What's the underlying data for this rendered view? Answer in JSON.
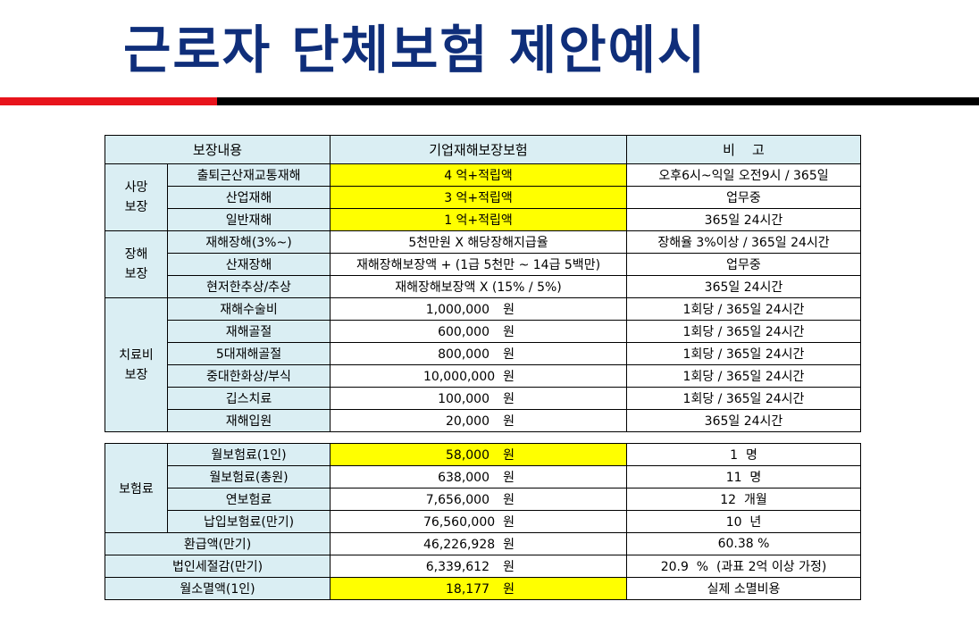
{
  "title": "근로자 단체보험 제안예시",
  "colors": {
    "title": "#0f2e7a",
    "bar_red": "#e8141c",
    "bar_black": "#000000",
    "header_bg": "#daeef3",
    "highlight": "#ffff00"
  },
  "table1": {
    "headers": [
      "보장내용",
      "기업재해보장보험",
      "비    고"
    ],
    "groups": [
      {
        "label": "사망\n보장",
        "rows": [
          {
            "item": "출퇴근산재교통재해",
            "value": "4 억+적립액",
            "note": "오후6시~익일 오전9시 / 365일"
          },
          {
            "item": "산업재해",
            "value": "3 억+적립액",
            "note": "업무중"
          },
          {
            "item": "일반재해",
            "value": "1 억+적립액",
            "note": "365일 24시간"
          }
        ]
      },
      {
        "label": "장해\n보장",
        "rows": [
          {
            "item": "재해장해(3%~)",
            "value": "5천만원 X 해당장해지급율",
            "note": "장해율 3%이상 / 365일 24시간"
          },
          {
            "item": "산재장해",
            "value": "재해장해보장액 + (1급 5천만 ~ 14급 5백만)",
            "note": "업무중"
          },
          {
            "item": "현저한추상/추상",
            "value": "재해장해보장액 X (15% / 5%)",
            "note": "365일 24시간"
          }
        ]
      },
      {
        "label": "치료비\n보장",
        "rows": [
          {
            "item": "재해수술비",
            "amount": "1,000,000",
            "unit": "원",
            "note": "1회당 / 365일 24시간"
          },
          {
            "item": "재해골절",
            "amount": "600,000",
            "unit": "원",
            "note": "1회당 / 365일 24시간"
          },
          {
            "item": "5대재해골절",
            "amount": "800,000",
            "unit": "원",
            "note": "1회당 / 365일 24시간"
          },
          {
            "item": "중대한화상/부식",
            "amount": "10,000,000",
            "unit": "원",
            "note": "1회당 / 365일 24시간"
          },
          {
            "item": "깁스치료",
            "amount": "100,000",
            "unit": "원",
            "note": "1회당 / 365일 24시간"
          },
          {
            "item": "재해입원",
            "amount": "20,000",
            "unit": "원",
            "note": "365일 24시간"
          }
        ]
      }
    ]
  },
  "table2": {
    "group_label": "보험료",
    "group_rows": [
      {
        "item": "월보험료(1인)",
        "amount": "58,000",
        "unit": "원",
        "note": "1  명"
      },
      {
        "item": "월보험료(총원)",
        "amount": "638,000",
        "unit": "원",
        "note": "11  명"
      },
      {
        "item": "연보험료",
        "amount": "7,656,000",
        "unit": "원",
        "note": "12  개월"
      },
      {
        "item": "납입보험료(만기)",
        "amount": "76,560,000",
        "unit": "원",
        "note": "10  년"
      }
    ],
    "rows": [
      {
        "item": "환급액(만기)",
        "amount": "46,226,928",
        "unit": "원",
        "note": "60.38 %"
      },
      {
        "item": "법인세절감(만기)",
        "amount": "6,339,612",
        "unit": "원",
        "note": "20.9  %  (과표 2억 이상 가정)"
      },
      {
        "item": "월소멸액(1인)",
        "amount": "18,177",
        "unit": "원",
        "note": "실제 소멸비용"
      }
    ]
  }
}
